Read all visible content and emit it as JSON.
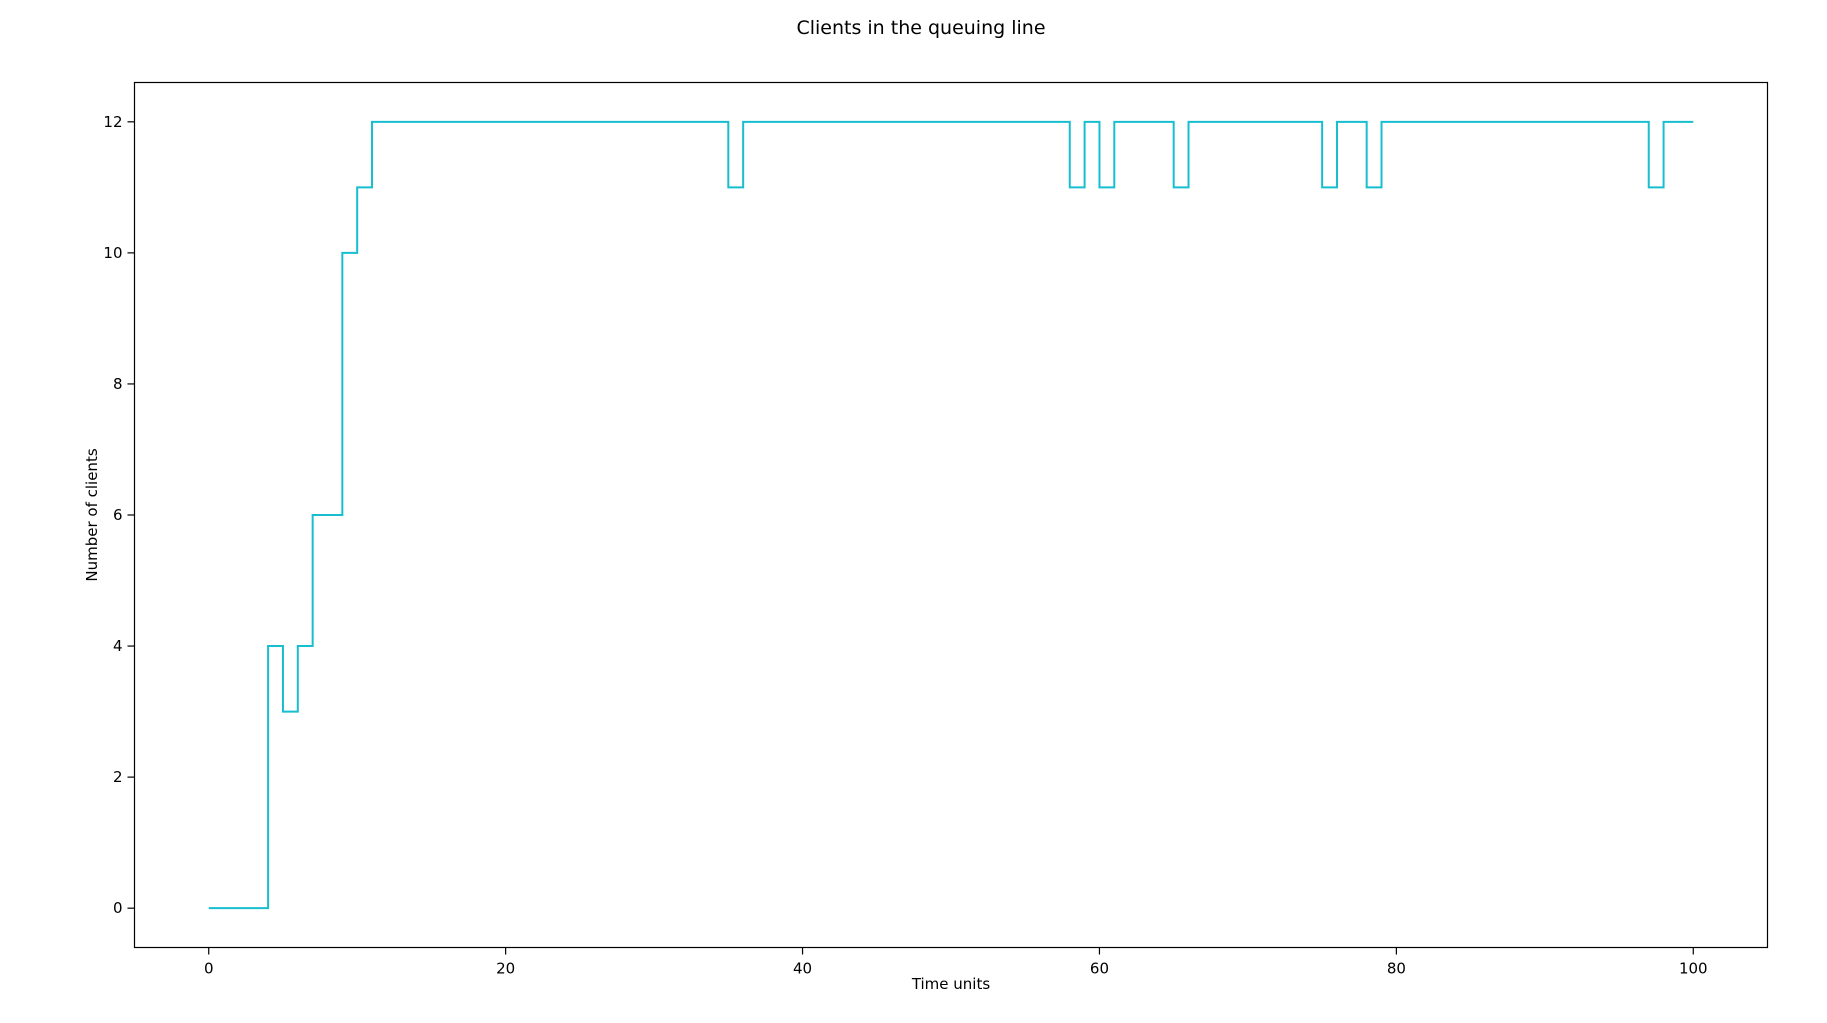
{
  "chart_data": {
    "type": "line",
    "step": "post",
    "title": "Clients in the queuing line",
    "xlabel": "Time units",
    "ylabel": "Number of clients",
    "xlim": [
      -5,
      105
    ],
    "ylim": [
      -0.6,
      12.6
    ],
    "xticks": [
      0,
      20,
      40,
      60,
      80,
      100
    ],
    "yticks": [
      0,
      2,
      4,
      6,
      8,
      10,
      12
    ],
    "grid": false,
    "legend": "none",
    "series": [
      {
        "color": "#17becf",
        "x": [
          0,
          1,
          2,
          3,
          4,
          5,
          6,
          7,
          8,
          9,
          10,
          11,
          12,
          13,
          14,
          15,
          16,
          17,
          18,
          19,
          20,
          21,
          22,
          23,
          24,
          25,
          26,
          27,
          28,
          29,
          30,
          31,
          32,
          33,
          34,
          35,
          36,
          37,
          38,
          39,
          40,
          41,
          42,
          43,
          44,
          45,
          46,
          47,
          48,
          49,
          50,
          51,
          52,
          53,
          54,
          55,
          56,
          57,
          58,
          59,
          60,
          61,
          62,
          63,
          64,
          65,
          66,
          67,
          68,
          69,
          70,
          71,
          72,
          73,
          74,
          75,
          76,
          77,
          78,
          79,
          80,
          81,
          82,
          83,
          84,
          85,
          86,
          87,
          88,
          89,
          90,
          91,
          92,
          93,
          94,
          95,
          96,
          97,
          98,
          99,
          100
        ],
        "y": [
          0,
          0,
          0,
          0,
          4,
          3,
          4,
          6,
          6,
          10,
          11,
          12,
          12,
          12,
          12,
          12,
          12,
          12,
          12,
          12,
          12,
          12,
          12,
          12,
          12,
          12,
          12,
          12,
          12,
          12,
          12,
          12,
          12,
          12,
          12,
          11,
          12,
          12,
          12,
          12,
          12,
          12,
          12,
          12,
          12,
          12,
          12,
          12,
          12,
          12,
          12,
          12,
          12,
          12,
          12,
          12,
          12,
          12,
          11,
          12,
          11,
          12,
          12,
          12,
          12,
          11,
          12,
          12,
          12,
          12,
          12,
          12,
          12,
          12,
          12,
          11,
          12,
          12,
          11,
          12,
          12,
          12,
          12,
          12,
          12,
          12,
          12,
          12,
          12,
          12,
          12,
          12,
          12,
          12,
          12,
          12,
          12,
          11,
          12,
          12,
          12
        ]
      }
    ]
  }
}
